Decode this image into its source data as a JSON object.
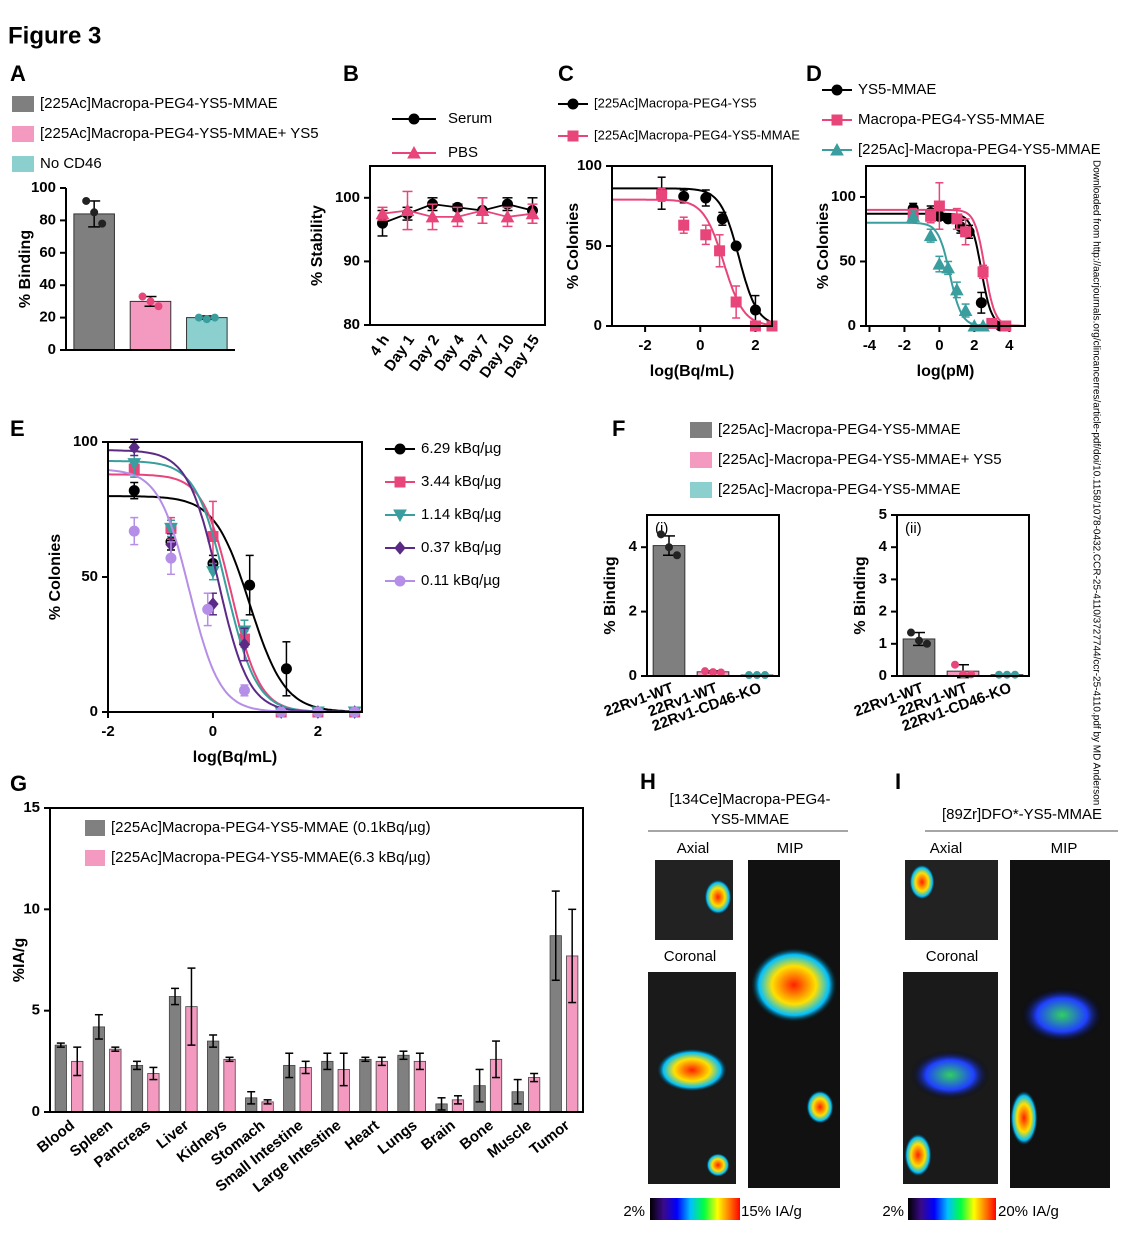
{
  "title": "Figure 3",
  "side_note": "Downloaded from http://aacrjournals.org/clincancerres/article-pdf/doi/10.1158/1078-0432.CCR-25-4110/3727744/ccr-25-4110.pdf by MD Anderson",
  "image_panels": [
    {
      "panel": "H",
      "title_lines": [
        "[134Ce]Macropa-PEG4-",
        "YS5-MMAE"
      ],
      "views": [
        "Axial",
        "MIP",
        "Coronal"
      ],
      "scale_min": "2%",
      "scale_max": "15% IA/g"
    },
    {
      "panel": "I",
      "title_lines": [
        "[89Zr]DFO*-YS5-MMAE"
      ],
      "views": [
        "Axial",
        "MIP",
        "Coronal"
      ],
      "scale_min": "2%",
      "scale_max": "20% IA/g"
    }
  ],
  "chart_data": [
    {
      "type": "bar",
      "panel": "A",
      "ylabel": "% Binding",
      "box": false,
      "categories": [
        null,
        null,
        null
      ],
      "values": [
        84,
        30,
        20
      ],
      "errors": [
        8,
        3,
        1
      ],
      "points": [
        [
          92,
          85,
          78
        ],
        [
          33,
          30,
          27
        ],
        [
          20,
          19,
          20
        ]
      ],
      "colors": [
        "#7f7f7f",
        "#f49ac1",
        "#8ccfcf"
      ],
      "legend": [
        "[225Ac]Macropa-PEG4-YS5-MMAE",
        "[225Ac]Macropa-PEG4-YS5-MMAE+ YS5",
        "No CD46"
      ],
      "ylim": [
        0,
        100
      ],
      "yticks": [
        0,
        20,
        40,
        60,
        80,
        100
      ]
    },
    {
      "type": "line",
      "panel": "B",
      "ylabel": "% Stability",
      "box": true,
      "categories": [
        "4 h",
        "Day 1",
        "Day 2",
        "Day 4",
        "Day 7",
        "Day 10",
        "Day 15"
      ],
      "series": [
        {
          "name": "Serum",
          "color": "#000000",
          "marker": "circle",
          "values": [
            96,
            97.5,
            99,
            98.5,
            98,
            99,
            98
          ],
          "errors": [
            2,
            1,
            1,
            0.5,
            2,
            1,
            2
          ]
        },
        {
          "name": "PBS",
          "color": "#e8457a",
          "marker": "triangle",
          "values": [
            97.5,
            98,
            97,
            97,
            98,
            97,
            97.5
          ],
          "errors": [
            1,
            3,
            2,
            1.5,
            2,
            1.5,
            1.5
          ]
        }
      ],
      "ylim": [
        80,
        105
      ],
      "yticks": [
        80,
        90,
        100
      ]
    },
    {
      "type": "dose_response",
      "panel": "C",
      "ylabel": "% Colonies",
      "xlabel": "log(Bq/mL)",
      "box": true,
      "series": [
        {
          "name": "[225Ac]Macropa-PEG4-YS5",
          "color": "#000000",
          "marker": "circle",
          "x": [
            -1.4,
            -0.6,
            0.2,
            0.8,
            1.3,
            2.0,
            2.6
          ],
          "values": [
            83,
            81,
            80,
            67,
            50,
            10,
            0
          ],
          "errors": [
            10,
            4,
            5,
            4,
            1,
            9,
            1
          ],
          "fit": {
            "top": 86,
            "bottom": 0,
            "logIC50": 1.4,
            "hill": 1.3
          }
        },
        {
          "name": "[225Ac]Macropa-PEG4-YS5-MMAE",
          "color": "#e8457a",
          "marker": "square",
          "x": [
            -1.4,
            -0.6,
            0.2,
            0.7,
            1.3,
            2.0,
            2.6
          ],
          "values": [
            82,
            63,
            57,
            47,
            15,
            0,
            0
          ],
          "errors": [
            4,
            5,
            6,
            10,
            10,
            1,
            1
          ],
          "fit": {
            "top": 79,
            "bottom": 0,
            "logIC50": 0.85,
            "hill": 1.2
          }
        }
      ],
      "xlim": [
        -3.2,
        2.6
      ],
      "xticks": [
        -2,
        0,
        2
      ],
      "ylim": [
        0,
        100
      ],
      "yticks": [
        0,
        50,
        100
      ]
    },
    {
      "type": "dose_response",
      "panel": "D",
      "ylabel": "% Colonies",
      "xlabel": "log(pM)",
      "box": true,
      "series": [
        {
          "name": "YS5-MMAE",
          "color": "#000000",
          "marker": "circle",
          "x": [
            -1.5,
            -0.5,
            0,
            0.5,
            1.2,
            1.7,
            2.4,
            3.5
          ],
          "values": [
            91,
            88,
            85,
            83,
            77,
            73,
            18,
            0
          ],
          "errors": [
            4,
            5,
            3,
            2,
            5,
            5,
            8,
            1
          ],
          "fit": {
            "top": 87,
            "bottom": 0,
            "logIC50": 2.4,
            "hill": 1.5
          }
        },
        {
          "name": "Macropa-PEG4-YS5-MMAE",
          "color": "#e8457a",
          "marker": "square",
          "x": [
            -1.5,
            -0.5,
            0,
            1,
            1.5,
            2.5,
            3.0,
            3.8
          ],
          "values": [
            86,
            85,
            93,
            83,
            73,
            42,
            2,
            0
          ],
          "errors": [
            5,
            5,
            18,
            8,
            10,
            5,
            2,
            1
          ],
          "fit": {
            "top": 90,
            "bottom": 0,
            "logIC50": 2.6,
            "hill": 1.5
          }
        },
        {
          "name": "[225Ac]-Macropa-PEG4-YS5-MMAE",
          "color": "#3a9e9e",
          "marker": "triangle",
          "x": [
            -1.5,
            -0.5,
            0,
            0.5,
            1,
            1.5,
            2,
            2.5
          ],
          "values": [
            85,
            70,
            48,
            45,
            28,
            12,
            0,
            0
          ],
          "errors": [
            5,
            5,
            6,
            5,
            6,
            5,
            1,
            1
          ],
          "fit": {
            "top": 80,
            "bottom": 0,
            "logIC50": 0.6,
            "hill": 1.3
          }
        }
      ],
      "xlim": [
        -4.2,
        4.9
      ],
      "xticks": [
        -4,
        -2,
        0,
        2,
        4
      ],
      "ylim": [
        0,
        124
      ],
      "yticks": [
        0,
        50,
        100
      ]
    },
    {
      "type": "dose_response",
      "panel": "E",
      "ylabel": "% Colonies",
      "xlabel": "log(Bq/mL)",
      "box": true,
      "series": [
        {
          "name": "6.29 kBq/µg",
          "color": "#000000",
          "marker": "circle",
          "x": [
            -1.5,
            -0.8,
            0,
            0.7,
            1.4,
            2.0,
            2.7
          ],
          "values": [
            82,
            63,
            55,
            47,
            16,
            0,
            0
          ],
          "errors": [
            3,
            3,
            3,
            11,
            10,
            1,
            1
          ],
          "fit": {
            "top": 80,
            "bottom": 0,
            "logIC50": 0.7,
            "hill": 1.3
          }
        },
        {
          "name": "3.44  kBq/µg",
          "color": "#e8457a",
          "marker": "square",
          "x": [
            -1.5,
            -0.8,
            0,
            0.6,
            1.3,
            2.0,
            2.7
          ],
          "values": [
            90,
            68,
            65,
            27,
            0,
            0,
            0
          ],
          "errors": [
            3,
            4,
            13,
            3,
            1,
            1,
            1
          ],
          "fit": {
            "top": 88,
            "bottom": 0,
            "logIC50": 0.35,
            "hill": 1.6
          }
        },
        {
          "name": "1.14  kBq/µg",
          "color": "#3a9e9e",
          "marker": "triangle-down",
          "x": [
            -1.5,
            -0.8,
            0,
            0.6,
            1.3,
            2.0,
            2.7
          ],
          "values": [
            92,
            68,
            52,
            30,
            0,
            0,
            0
          ],
          "errors": [
            5,
            3,
            3,
            4,
            1,
            1,
            1
          ],
          "fit": {
            "top": 93,
            "bottom": 0,
            "logIC50": 0.25,
            "hill": 1.5
          }
        },
        {
          "name": "0.37  kBq/µg",
          "color": "#5b2a86",
          "marker": "diamond",
          "x": [
            -1.5,
            -0.8,
            0,
            0.6,
            1.3,
            2.0,
            2.7
          ],
          "values": [
            98,
            62,
            40,
            25,
            0,
            0,
            0
          ],
          "errors": [
            3,
            4,
            4,
            6,
            1,
            1,
            1
          ],
          "fit": {
            "top": 97,
            "bottom": 0,
            "logIC50": 0.1,
            "hill": 1.5
          }
        },
        {
          "name": "0.11  kBq/µg",
          "color": "#b58ee8",
          "marker": "circle",
          "x": [
            -1.5,
            -0.8,
            -0.1,
            0.6,
            1.3,
            2.0,
            2.7
          ],
          "values": [
            67,
            57,
            38,
            8,
            0,
            0,
            0
          ],
          "errors": [
            5,
            6,
            6,
            2,
            1,
            1,
            1
          ],
          "fit": {
            "top": 90,
            "bottom": 0,
            "logIC50": -0.45,
            "hill": 1.5
          }
        }
      ],
      "xlim": [
        -2,
        2.84
      ],
      "xticks": [
        -2,
        0,
        2
      ],
      "ylim": [
        0,
        100
      ],
      "yticks": [
        0,
        50,
        100
      ]
    },
    {
      "type": "bar",
      "panel": "F",
      "tag": "(i)",
      "ylabel": "% Binding",
      "box": true,
      "categories": [
        "22Rv1-WT",
        "22Rv1-WT",
        "22Rv1-CD46-KO"
      ],
      "values": [
        4.05,
        0.13,
        0.03
      ],
      "errors": [
        0.3,
        0.03,
        0.01
      ],
      "points": [
        [
          4.4,
          4.0,
          3.75
        ],
        [
          0.15,
          0.12,
          0.11
        ],
        [
          0.03,
          0.03,
          0.03
        ]
      ],
      "colors": [
        "#7f7f7f",
        "#f49ac1",
        "#8ccfcf"
      ],
      "legend": [
        "[225Ac]-Macropa-PEG4-YS5-MMAE",
        "[225Ac]-Macropa-PEG4-YS5-MMAE+ YS5",
        "[225Ac]-Macropa-PEG4-YS5-MMAE"
      ],
      "ylim": [
        0,
        5
      ],
      "yticks": [
        0,
        2,
        4
      ]
    },
    {
      "type": "bar",
      "tag": "(ii)",
      "ylabel": "% Binding",
      "box": true,
      "categories": [
        "22Rv1-WT",
        "22Rv1-WT",
        "22Rv1-CD46-KO"
      ],
      "values": [
        1.15,
        0.15,
        0.04
      ],
      "errors": [
        0.2,
        0.2,
        0.01
      ],
      "points": [
        [
          1.35,
          1.1,
          1.0
        ],
        [
          0.35,
          0.05,
          0.05
        ],
        [
          0.04,
          0.04,
          0.04
        ]
      ],
      "colors": [
        "#7f7f7f",
        "#f49ac1",
        "#8ccfcf"
      ],
      "ylim": [
        0,
        5
      ],
      "yticks": [
        0,
        1,
        2,
        3,
        4,
        5
      ]
    },
    {
      "type": "grouped_bar",
      "panel": "G",
      "ylabel": "%IA/g",
      "box": true,
      "categories": [
        "Blood",
        "Spleen",
        "Pancreas",
        "Liver",
        "Kidneys",
        "Stomach",
        "Small Intestine",
        "Large Intestine",
        "Heart",
        "Lungs",
        "Brain",
        "Bone",
        "Muscle",
        "Tumor"
      ],
      "series": [
        {
          "name": "[225Ac]Macropa-PEG4-YS5-MMAE (0.1kBq/µg)",
          "color": "#808080",
          "values": [
            3.3,
            4.2,
            2.3,
            5.7,
            3.5,
            0.7,
            2.3,
            2.5,
            2.6,
            2.8,
            0.4,
            1.3,
            1.0,
            8.7
          ],
          "errors": [
            0.1,
            0.6,
            0.2,
            0.4,
            0.3,
            0.3,
            0.6,
            0.4,
            0.1,
            0.2,
            0.3,
            0.8,
            0.6,
            2.2
          ]
        },
        {
          "name": "[225Ac]Macropa-PEG4-YS5-MMAE(6.3 kBq/µg)",
          "color": "#f49ac1",
          "values": [
            2.5,
            3.1,
            1.9,
            5.2,
            2.6,
            0.5,
            2.2,
            2.1,
            2.5,
            2.5,
            0.6,
            2.6,
            1.7,
            7.7
          ],
          "errors": [
            0.7,
            0.1,
            0.3,
            1.9,
            0.1,
            0.1,
            0.3,
            0.8,
            0.2,
            0.4,
            0.2,
            0.9,
            0.2,
            2.3
          ]
        }
      ],
      "ylim": [
        0,
        15
      ],
      "yticks": [
        0,
        5,
        10,
        15
      ]
    }
  ]
}
